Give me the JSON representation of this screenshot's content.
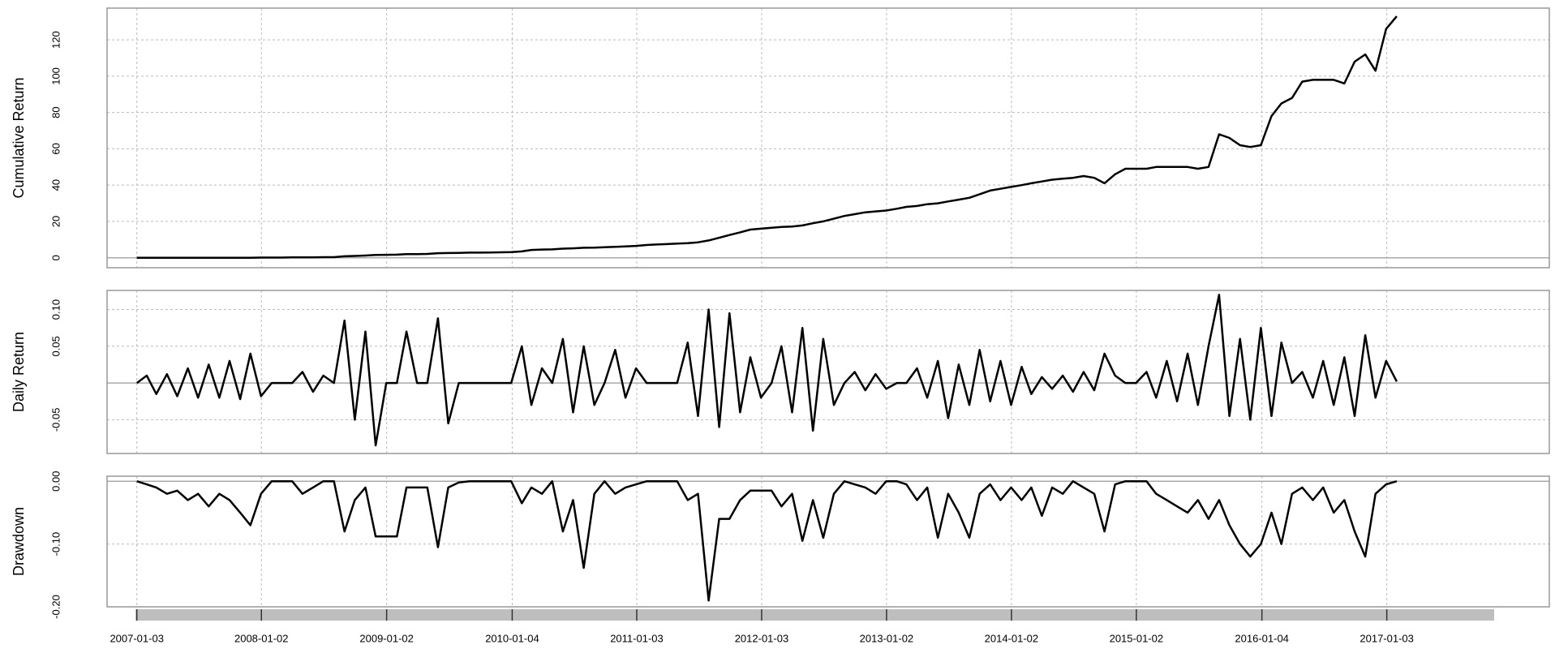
{
  "chart_data": [
    {
      "type": "line",
      "y_label": "Cumulative Return",
      "color": "#000000",
      "grid": true,
      "ylim": [
        -5.5,
        137.5
      ],
      "yticks": [
        0,
        20,
        40,
        60,
        80,
        100,
        120
      ],
      "x": [
        "2007-01-03",
        "2007-02-01",
        "2007-03-01",
        "2007-04-01",
        "2007-05-01",
        "2007-06-01",
        "2007-07-01",
        "2007-08-01",
        "2007-09-01",
        "2007-10-01",
        "2007-11-01",
        "2007-12-01",
        "2008-01-01",
        "2008-02-01",
        "2008-03-01",
        "2008-04-01",
        "2008-05-01",
        "2008-06-01",
        "2008-07-01",
        "2008-08-01",
        "2008-09-01",
        "2008-10-01",
        "2008-11-01",
        "2008-12-01",
        "2009-01-01",
        "2009-02-01",
        "2009-03-01",
        "2009-04-01",
        "2009-05-01",
        "2009-06-01",
        "2009-07-01",
        "2009-08-01",
        "2009-09-01",
        "2009-10-01",
        "2009-11-01",
        "2009-12-01",
        "2010-01-01",
        "2010-02-01",
        "2010-03-01",
        "2010-04-01",
        "2010-05-01",
        "2010-06-01",
        "2010-07-01",
        "2010-08-01",
        "2010-09-01",
        "2010-10-01",
        "2010-11-01",
        "2010-12-01",
        "2011-01-01",
        "2011-02-01",
        "2011-03-01",
        "2011-04-01",
        "2011-05-01",
        "2011-06-01",
        "2011-07-01",
        "2011-08-01",
        "2011-09-01",
        "2011-10-01",
        "2011-11-01",
        "2011-12-01",
        "2012-01-01",
        "2012-02-01",
        "2012-03-01",
        "2012-04-01",
        "2012-05-01",
        "2012-06-01",
        "2012-07-01",
        "2012-08-01",
        "2012-09-01",
        "2012-10-01",
        "2012-11-01",
        "2012-12-01",
        "2013-01-01",
        "2013-02-01",
        "2013-03-01",
        "2013-04-01",
        "2013-05-01",
        "2013-06-01",
        "2013-07-01",
        "2013-08-01",
        "2013-09-01",
        "2013-10-01",
        "2013-11-01",
        "2013-12-01",
        "2014-01-01",
        "2014-02-01",
        "2014-03-01",
        "2014-04-01",
        "2014-05-01",
        "2014-06-01",
        "2014-07-01",
        "2014-08-01",
        "2014-09-01",
        "2014-10-01",
        "2014-11-01",
        "2014-12-01",
        "2015-01-01",
        "2015-02-01",
        "2015-03-01",
        "2015-04-01",
        "2015-05-01",
        "2015-06-01",
        "2015-07-01",
        "2015-08-01",
        "2015-09-01",
        "2015-10-01",
        "2015-11-01",
        "2015-12-01",
        "2016-01-01",
        "2016-02-01",
        "2016-03-01",
        "2016-04-01",
        "2016-05-01",
        "2016-06-01",
        "2016-07-01",
        "2016-08-01",
        "2016-09-01",
        "2016-10-01",
        "2016-11-01",
        "2016-12-01",
        "2017-01-01",
        "2017-02-01"
      ],
      "values": [
        0,
        0,
        0,
        0,
        0,
        0,
        0,
        0,
        0,
        0,
        0,
        0,
        0.1,
        0.1,
        0.1,
        0.2,
        0.2,
        0.2,
        0.3,
        0.3,
        0.8,
        1,
        1.2,
        1.5,
        1.6,
        1.7,
        2,
        2,
        2.1,
        2.5,
        2.6,
        2.7,
        2.8,
        2.8,
        2.9,
        3,
        3.1,
        3.5,
        4.3,
        4.5,
        4.6,
        5,
        5.2,
        5.5,
        5.6,
        5.8,
        6,
        6.2,
        6.5,
        7,
        7.3,
        7.5,
        7.8,
        8,
        8.5,
        9.5,
        11,
        12.5,
        14,
        15.5,
        16,
        16.5,
        17,
        17.2,
        17.8,
        19,
        20,
        21.5,
        23,
        24,
        25,
        25.5,
        26,
        27,
        28,
        28.5,
        29.5,
        30,
        31,
        32,
        33,
        35,
        37,
        38,
        39,
        40,
        41,
        42,
        43,
        43.5,
        44,
        45,
        44,
        41,
        46,
        49,
        49,
        49,
        50,
        50,
        50,
        50,
        49,
        50,
        68,
        66,
        62,
        61,
        62,
        78,
        85,
        88,
        97,
        98,
        98,
        98,
        96,
        108,
        112,
        103,
        126,
        133
      ]
    },
    {
      "type": "line",
      "y_label": "Daily Return",
      "color": "#000000",
      "grid": true,
      "ylim": [
        -0.096,
        0.126
      ],
      "yticks": [
        -0.05,
        0.05,
        {
          "value": 0.1,
          "label": "0.10"
        }
      ],
      "x": [
        "2007-01-03",
        "2007-02-01",
        "2007-03-01",
        "2007-04-01",
        "2007-05-01",
        "2007-06-01",
        "2007-07-01",
        "2007-08-01",
        "2007-09-01",
        "2007-10-01",
        "2007-11-01",
        "2007-12-01",
        "2008-01-01",
        "2008-02-01",
        "2008-03-01",
        "2008-04-01",
        "2008-05-01",
        "2008-06-01",
        "2008-07-01",
        "2008-08-01",
        "2008-09-01",
        "2008-10-01",
        "2008-11-01",
        "2008-12-01",
        "2009-01-01",
        "2009-02-01",
        "2009-03-01",
        "2009-04-01",
        "2009-05-01",
        "2009-06-01",
        "2009-07-01",
        "2009-08-01",
        "2009-09-01",
        "2009-10-01",
        "2009-11-01",
        "2009-12-01",
        "2010-01-01",
        "2010-02-01",
        "2010-03-01",
        "2010-04-01",
        "2010-05-01",
        "2010-06-01",
        "2010-07-01",
        "2010-08-01",
        "2010-09-01",
        "2010-10-01",
        "2010-11-01",
        "2010-12-01",
        "2011-01-01",
        "2011-02-01",
        "2011-03-01",
        "2011-04-01",
        "2011-05-01",
        "2011-06-01",
        "2011-07-01",
        "2011-08-01",
        "2011-09-01",
        "2011-10-01",
        "2011-11-01",
        "2011-12-01",
        "2012-01-01",
        "2012-02-01",
        "2012-03-01",
        "2012-04-01",
        "2012-05-01",
        "2012-06-01",
        "2012-07-01",
        "2012-08-01",
        "2012-09-01",
        "2012-10-01",
        "2012-11-01",
        "2012-12-01",
        "2013-01-01",
        "2013-02-01",
        "2013-03-01",
        "2013-04-01",
        "2013-05-01",
        "2013-06-01",
        "2013-07-01",
        "2013-08-01",
        "2013-09-01",
        "2013-10-01",
        "2013-11-01",
        "2013-12-01",
        "2014-01-01",
        "2014-02-01",
        "2014-03-01",
        "2014-04-01",
        "2014-05-01",
        "2014-06-01",
        "2014-07-01",
        "2014-08-01",
        "2014-09-01",
        "2014-10-01",
        "2014-11-01",
        "2014-12-01",
        "2015-01-01",
        "2015-02-01",
        "2015-03-01",
        "2015-04-01",
        "2015-05-01",
        "2015-06-01",
        "2015-07-01",
        "2015-08-01",
        "2015-09-01",
        "2015-10-01",
        "2015-11-01",
        "2015-12-01",
        "2016-01-01",
        "2016-02-01",
        "2016-03-01",
        "2016-04-01",
        "2016-05-01",
        "2016-06-01",
        "2016-07-01",
        "2016-08-01",
        "2016-09-01",
        "2016-10-01",
        "2016-11-01",
        "2016-12-01",
        "2017-01-01",
        "2017-02-01"
      ],
      "values": [
        0,
        0.01,
        -0.015,
        0.012,
        -0.018,
        0.02,
        -0.02,
        0.025,
        -0.02,
        0.03,
        -0.022,
        0.04,
        -0.018,
        0,
        0,
        0,
        0.015,
        -0.012,
        0.01,
        0,
        0.085,
        -0.05,
        0.07,
        -0.085,
        0,
        0,
        0.07,
        0,
        0,
        0.088,
        -0.055,
        0,
        0,
        0,
        0,
        0,
        0,
        0.05,
        -0.03,
        0.02,
        0,
        0.06,
        -0.04,
        0.05,
        -0.03,
        0,
        0.045,
        -0.02,
        0.02,
        0,
        0,
        0,
        0,
        0.055,
        -0.045,
        0.1,
        -0.06,
        0.095,
        -0.04,
        0.035,
        -0.02,
        0,
        0.05,
        -0.04,
        0.075,
        -0.065,
        0.06,
        -0.03,
        0,
        0.015,
        -0.01,
        0.012,
        -0.008,
        0,
        0,
        0.02,
        -0.02,
        0.03,
        -0.048,
        0.025,
        -0.03,
        0.045,
        -0.025,
        0.03,
        -0.03,
        0.022,
        -0.015,
        0.008,
        -0.008,
        0.01,
        -0.012,
        0.015,
        -0.01,
        0.04,
        0.01,
        0,
        0,
        0.015,
        -0.02,
        0.03,
        -0.025,
        0.04,
        -0.03,
        0.05,
        0.12,
        -0.045,
        0.06,
        -0.05,
        0.075,
        -0.045,
        0.055,
        0,
        0.015,
        -0.02,
        0.03,
        -0.03,
        0.035,
        -0.045,
        0.065,
        -0.02,
        0.03,
        0.002
      ]
    },
    {
      "type": "line",
      "y_label": "Drawdown",
      "color": "#000000",
      "grid": true,
      "ylim": [
        -0.2,
        0.008
      ],
      "yticks": [
        {
          "value": 0,
          "label": "0.00"
        },
        {
          "value": -0.1,
          "label": "-0.10"
        },
        {
          "value": -0.2,
          "label": "-0.20"
        }
      ],
      "xlim": [
        "2006-10-08",
        "2018-04-23"
      ],
      "xticks": [
        "2007-01-03",
        "2008-01-02",
        "2009-01-02",
        "2010-01-04",
        "2011-01-03",
        "2012-01-03",
        "2013-01-02",
        "2014-01-02",
        "2015-01-02",
        "2016-01-04",
        "2017-01-03"
      ],
      "x": [
        "2007-01-03",
        "2007-02-01",
        "2007-03-01",
        "2007-04-01",
        "2007-05-01",
        "2007-06-01",
        "2007-07-01",
        "2007-08-01",
        "2007-09-01",
        "2007-10-01",
        "2007-11-01",
        "2007-12-01",
        "2008-01-01",
        "2008-02-01",
        "2008-03-01",
        "2008-04-01",
        "2008-05-01",
        "2008-06-01",
        "2008-07-01",
        "2008-08-01",
        "2008-09-01",
        "2008-10-01",
        "2008-11-01",
        "2008-12-01",
        "2009-01-01",
        "2009-02-01",
        "2009-03-01",
        "2009-04-01",
        "2009-05-01",
        "2009-06-01",
        "2009-07-01",
        "2009-08-01",
        "2009-09-01",
        "2009-10-01",
        "2009-11-01",
        "2009-12-01",
        "2010-01-01",
        "2010-02-01",
        "2010-03-01",
        "2010-04-01",
        "2010-05-01",
        "2010-06-01",
        "2010-07-01",
        "2010-08-01",
        "2010-09-01",
        "2010-10-01",
        "2010-11-01",
        "2010-12-01",
        "2011-01-01",
        "2011-02-01",
        "2011-03-01",
        "2011-04-01",
        "2011-05-01",
        "2011-06-01",
        "2011-07-01",
        "2011-08-01",
        "2011-09-01",
        "2011-10-01",
        "2011-11-01",
        "2011-12-01",
        "2012-01-01",
        "2012-02-01",
        "2012-03-01",
        "2012-04-01",
        "2012-05-01",
        "2012-06-01",
        "2012-07-01",
        "2012-08-01",
        "2012-09-01",
        "2012-10-01",
        "2012-11-01",
        "2012-12-01",
        "2013-01-01",
        "2013-02-01",
        "2013-03-01",
        "2013-04-01",
        "2013-05-01",
        "2013-06-01",
        "2013-07-01",
        "2013-08-01",
        "2013-09-01",
        "2013-10-01",
        "2013-11-01",
        "2013-12-01",
        "2014-01-01",
        "2014-02-01",
        "2014-03-01",
        "2014-04-01",
        "2014-05-01",
        "2014-06-01",
        "2014-07-01",
        "2014-08-01",
        "2014-09-01",
        "2014-10-01",
        "2014-11-01",
        "2014-12-01",
        "2015-01-01",
        "2015-02-01",
        "2015-03-01",
        "2015-04-01",
        "2015-05-01",
        "2015-06-01",
        "2015-07-01",
        "2015-08-01",
        "2015-09-01",
        "2015-10-01",
        "2015-11-01",
        "2015-12-01",
        "2016-01-01",
        "2016-02-01",
        "2016-03-01",
        "2016-04-01",
        "2016-05-01",
        "2016-06-01",
        "2016-07-01",
        "2016-08-01",
        "2016-09-01",
        "2016-10-01",
        "2016-11-01",
        "2016-12-01",
        "2017-01-01",
        "2017-02-01"
      ],
      "values": [
        0,
        -0.005,
        -0.01,
        -0.02,
        -0.015,
        -0.03,
        -0.02,
        -0.04,
        -0.02,
        -0.03,
        -0.05,
        -0.07,
        -0.02,
        0,
        0,
        0,
        -0.02,
        -0.01,
        0,
        0,
        -0.08,
        -0.03,
        -0.01,
        -0.088,
        -0.088,
        -0.088,
        -0.01,
        -0.01,
        -0.01,
        -0.105,
        -0.01,
        -0.002,
        0,
        0,
        0,
        0,
        0,
        -0.035,
        -0.01,
        -0.02,
        0,
        -0.08,
        -0.03,
        -0.138,
        -0.02,
        0,
        -0.02,
        -0.01,
        -0.005,
        0,
        0,
        0,
        0,
        -0.03,
        -0.02,
        -0.19,
        -0.06,
        -0.06,
        -0.03,
        -0.015,
        -0.015,
        -0.015,
        -0.04,
        -0.02,
        -0.095,
        -0.03,
        -0.09,
        -0.02,
        0,
        -0.005,
        -0.01,
        -0.02,
        0,
        0,
        -0.005,
        -0.03,
        -0.01,
        -0.09,
        -0.02,
        -0.05,
        -0.09,
        -0.02,
        -0.005,
        -0.03,
        -0.01,
        -0.03,
        -0.01,
        -0.055,
        -0.01,
        -0.02,
        0,
        -0.01,
        -0.02,
        -0.08,
        -0.005,
        0,
        0,
        0,
        -0.02,
        -0.03,
        -0.04,
        -0.05,
        -0.03,
        -0.06,
        -0.03,
        -0.07,
        -0.1,
        -0.12,
        -0.1,
        -0.05,
        -0.1,
        -0.02,
        -0.01,
        -0.03,
        -0.01,
        -0.05,
        -0.03,
        -0.08,
        -0.12,
        -0.02,
        -0.005,
        0
      ]
    }
  ]
}
